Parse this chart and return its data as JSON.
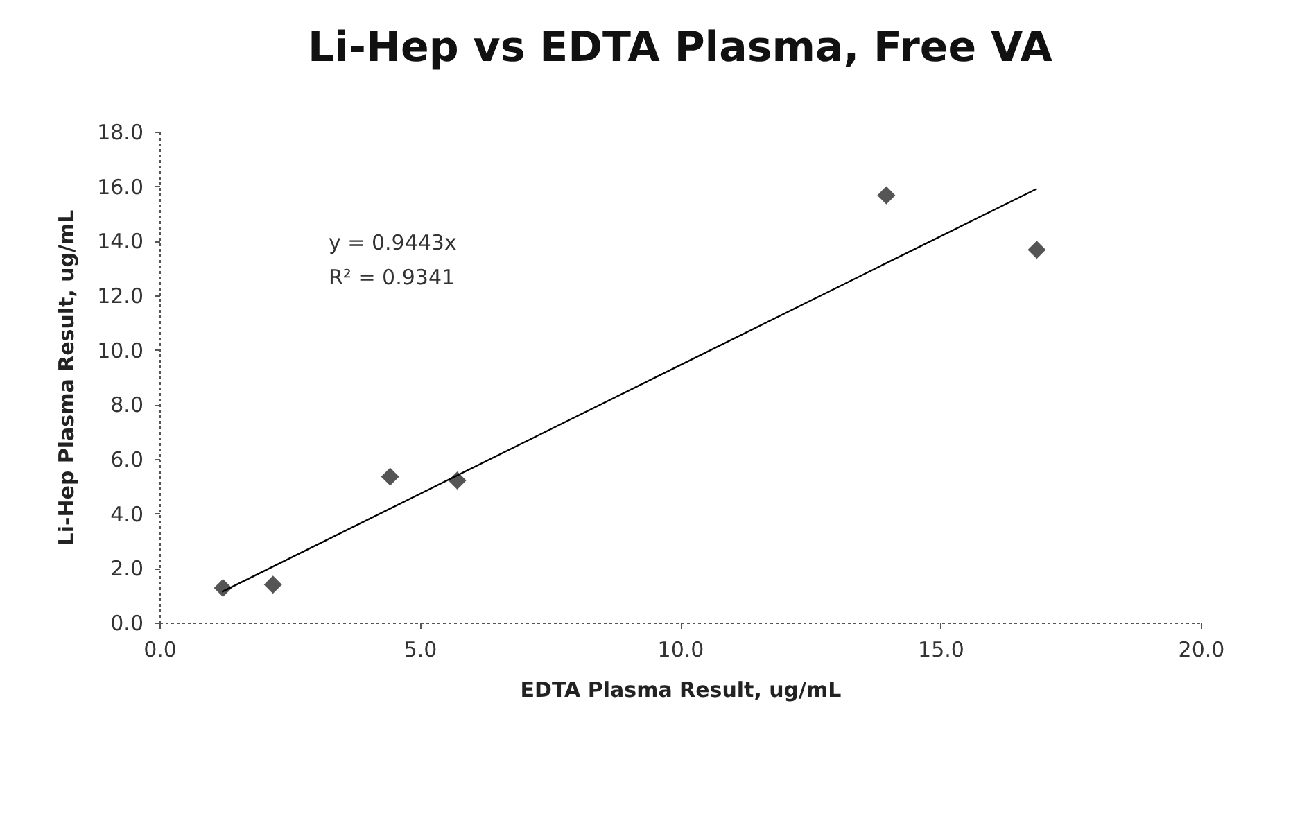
{
  "chart_data": {
    "type": "scatter",
    "title": "Li-Hep vs EDTA Plasma, Free VA",
    "xlabel": "EDTA Plasma Result, ug/mL",
    "ylabel": "Li-Hep Plasma Result, ug/mL",
    "annotations": [
      "y = 0.9443x",
      "R² = 0.9341"
    ],
    "series": [
      {
        "color": "#555555",
        "marker": "diamond",
        "x": [
          1.22,
          2.18,
          4.43,
          5.72,
          13.96,
          16.85
        ],
        "values": [
          1.27,
          1.39,
          5.35,
          5.21,
          15.67,
          13.67
        ]
      },
      {
        "type": "line",
        "color": "#000000",
        "x": [
          1.2,
          16.85
        ],
        "values": [
          1.13,
          15.91
        ]
      }
    ],
    "xlim": [
      0,
      20
    ],
    "xticks": [
      {
        "value": 0,
        "label": "0.0"
      },
      {
        "value": 5,
        "label": "5.0"
      },
      {
        "value": 10,
        "label": "10.0"
      },
      {
        "value": 15,
        "label": "15.0"
      },
      {
        "value": 20,
        "label": "20.0"
      }
    ],
    "ylim": [
      0,
      18
    ],
    "yticks": [
      {
        "value": 0,
        "label": "0.0"
      },
      {
        "value": 2,
        "label": "2.0"
      },
      {
        "value": 4,
        "label": "4.0"
      },
      {
        "value": 6,
        "label": "6.0"
      },
      {
        "value": 8,
        "label": "8.0"
      },
      {
        "value": 10,
        "label": "10.0"
      },
      {
        "value": 12,
        "label": "12.0"
      },
      {
        "value": 14,
        "label": "14.0"
      },
      {
        "value": 16,
        "label": "16.0"
      },
      {
        "value": 18,
        "label": "18.0"
      }
    ],
    "grid": false,
    "legend": false
  }
}
